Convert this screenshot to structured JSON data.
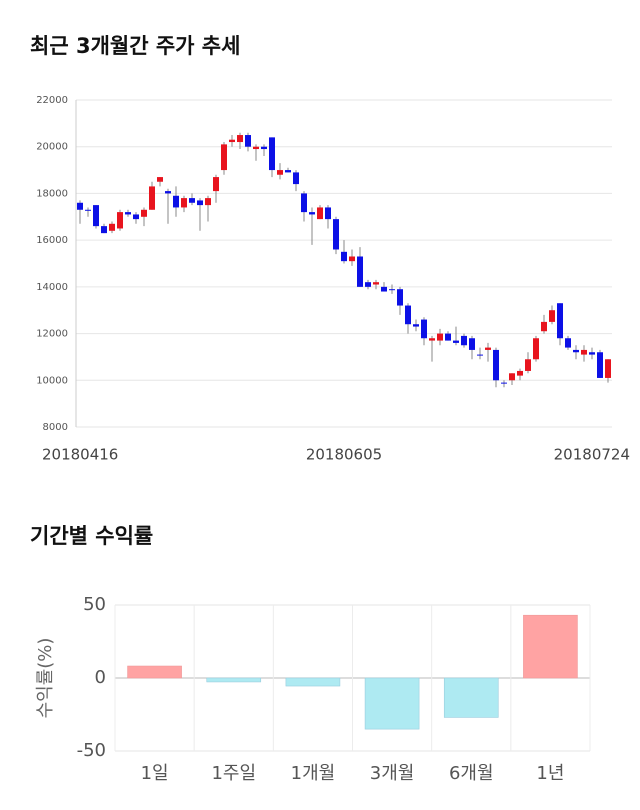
{
  "chart_data": [
    {
      "type": "candlestick",
      "title": "최근 3개월간 주가 추세",
      "categories": [
        "20180416",
        null,
        null,
        null,
        null,
        null,
        null,
        null,
        null,
        null,
        null,
        null,
        null,
        null,
        null,
        null,
        null,
        null,
        null,
        null,
        null,
        null,
        null,
        null,
        null,
        null,
        null,
        null,
        null,
        null,
        null,
        null,
        null,
        "20180605",
        null,
        null,
        null,
        null,
        null,
        null,
        null,
        null,
        null,
        null,
        null,
        null,
        null,
        null,
        null,
        null,
        null,
        null,
        null,
        null,
        null,
        null,
        null,
        null,
        null,
        null,
        null,
        null,
        null,
        null,
        null,
        null,
        "20180724"
      ],
      "open": [
        17600,
        17300,
        17500,
        16600,
        16400,
        16500,
        17200,
        17100,
        17000,
        17300,
        18500,
        18100,
        17900,
        17400,
        17800,
        17700,
        17500,
        18100,
        19000,
        20200,
        20200,
        20500,
        19900,
        20000,
        20400,
        18800,
        19000,
        18900,
        18000,
        17200,
        16900,
        17400,
        16900,
        15500,
        15100,
        15300,
        14200,
        14100,
        14000,
        13900,
        13900,
        13200,
        12400,
        12600,
        11700,
        11700,
        12000,
        11700,
        11900,
        11800,
        11100,
        11300,
        11300,
        9900,
        10000,
        10200,
        10400,
        10900,
        12100,
        12500,
        13300,
        11800,
        11300,
        11100,
        11200,
        11200,
        10100
      ],
      "high": [
        17700,
        17400,
        17500,
        16700,
        16800,
        17300,
        17300,
        17200,
        17400,
        18500,
        18700,
        18200,
        18300,
        17900,
        18000,
        17800,
        17900,
        18800,
        20200,
        20500,
        20600,
        20600,
        20100,
        20100,
        20400,
        19300,
        19100,
        19000,
        18100,
        17400,
        17500,
        17500,
        17000,
        16000,
        15600,
        15700,
        14300,
        14300,
        14200,
        14100,
        14000,
        13300,
        12600,
        12700,
        11900,
        12200,
        12100,
        12300,
        12000,
        11900,
        11400,
        11600,
        11400,
        10000,
        10300,
        10500,
        11200,
        11900,
        12800,
        13200,
        13300,
        11900,
        11500,
        11500,
        11400,
        11300,
        10900
      ],
      "low": [
        16700,
        17000,
        16500,
        16300,
        16300,
        16400,
        17000,
        16700,
        16600,
        17300,
        18300,
        16700,
        17000,
        17200,
        17500,
        16400,
        16800,
        17600,
        18800,
        20000,
        19900,
        19800,
        19400,
        19600,
        18700,
        18600,
        18900,
        18100,
        16800,
        15800,
        16900,
        16500,
        15400,
        15000,
        14900,
        14000,
        13900,
        13900,
        13800,
        13700,
        12800,
        12000,
        12100,
        11500,
        10800,
        11500,
        11700,
        11500,
        11400,
        10900,
        10900,
        10800,
        9700,
        9700,
        9800,
        10000,
        10300,
        10800,
        12000,
        12400,
        11500,
        11300,
        10900,
        10800,
        10900,
        10100,
        9900
      ],
      "close": [
        17300,
        17300,
        16600,
        16300,
        16700,
        17200,
        17100,
        16900,
        17300,
        18300,
        18700,
        18000,
        17400,
        17800,
        17600,
        17500,
        17800,
        18700,
        20100,
        20300,
        20500,
        20000,
        20000,
        19900,
        19000,
        19000,
        18900,
        18400,
        17200,
        17100,
        17400,
        16900,
        15600,
        15100,
        15300,
        14000,
        14000,
        14200,
        13800,
        13900,
        13200,
        12400,
        12300,
        11800,
        11800,
        12000,
        11700,
        11600,
        11500,
        11300,
        11100,
        11400,
        10000,
        9900,
        10300,
        10400,
        10900,
        11800,
        12500,
        13000,
        11800,
        11400,
        11200,
        11300,
        11100,
        10100,
        10900
      ],
      "up_color": "#e8141e",
      "down_color": "#0c10e6",
      "ylim": [
        8000,
        22000
      ],
      "yticks": [
        8000,
        10000,
        12000,
        14000,
        16000,
        18000,
        20000,
        22000
      ],
      "grid": true
    },
    {
      "type": "bar",
      "title": "기간별 수익률",
      "ylabel": "수익률(%)",
      "categories": [
        "1일",
        "1주일",
        "1개월",
        "3개월",
        "6개월",
        "1년"
      ],
      "values": [
        8.2,
        -2.7,
        -5.5,
        -35,
        -27,
        43
      ],
      "positive_color": "#ffa3a3",
      "negative_color": "#aeeaf2",
      "ylim": [
        -50,
        50
      ],
      "yticks": [
        -50,
        0,
        50
      ],
      "grid": true
    }
  ]
}
